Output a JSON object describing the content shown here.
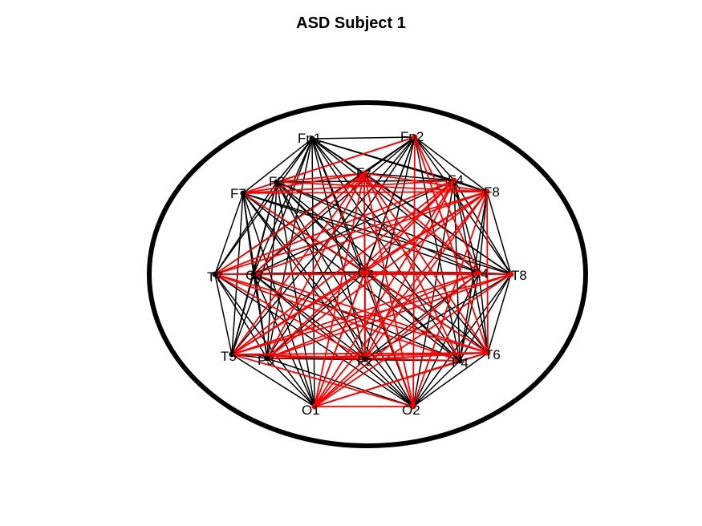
{
  "title": "ASD Subject 1",
  "colors": {
    "background": "#ffffff",
    "outline": "#000000",
    "black_edge": "#000000",
    "red_edge": "#ff0000",
    "node": "#000000"
  },
  "nodes": [
    {
      "id": "Fp1",
      "label": "Fp1"
    },
    {
      "id": "Fp2",
      "label": "Fp2"
    },
    {
      "id": "F7",
      "label": "F7"
    },
    {
      "id": "F3",
      "label": "F3"
    },
    {
      "id": "Fz",
      "label": "Fz"
    },
    {
      "id": "F4",
      "label": "F4"
    },
    {
      "id": "F8",
      "label": "F8"
    },
    {
      "id": "T7",
      "label": "T7"
    },
    {
      "id": "C3",
      "label": "C3"
    },
    {
      "id": "Cz",
      "label": "Cz"
    },
    {
      "id": "C4",
      "label": "C4"
    },
    {
      "id": "T8",
      "label": "T8"
    },
    {
      "id": "T5",
      "label": "T5"
    },
    {
      "id": "P3",
      "label": "P3"
    },
    {
      "id": "Pz",
      "label": "Pz"
    },
    {
      "id": "P4",
      "label": "P4"
    },
    {
      "id": "T6",
      "label": "T6"
    },
    {
      "id": "O1",
      "label": "O1"
    },
    {
      "id": "O2",
      "label": "O2"
    }
  ],
  "red_hubs": [
    "Fz",
    "F4",
    "F8",
    "Cz",
    "C4",
    "T8",
    "T6",
    "O1",
    "O2",
    "Fp2"
  ],
  "red_edges": [
    [
      "Fz",
      "F7"
    ],
    [
      "Fz",
      "F3"
    ],
    [
      "Fz",
      "T7"
    ],
    [
      "Fz",
      "C3"
    ],
    [
      "Fz",
      "T5"
    ],
    [
      "Fz",
      "P3"
    ],
    [
      "Fz",
      "Pz"
    ],
    [
      "Fz",
      "P4"
    ],
    [
      "Fz",
      "T6"
    ],
    [
      "Fz",
      "O1"
    ],
    [
      "Fz",
      "O2"
    ],
    [
      "Fz",
      "F8"
    ],
    [
      "Fz",
      "C4"
    ],
    [
      "F8",
      "F7"
    ],
    [
      "F8",
      "T7"
    ],
    [
      "F8",
      "C3"
    ],
    [
      "F8",
      "T5"
    ],
    [
      "F8",
      "P3"
    ],
    [
      "F8",
      "Pz"
    ],
    [
      "F8",
      "O1"
    ],
    [
      "F8",
      "Cz"
    ],
    [
      "F8",
      "T6"
    ],
    [
      "F8",
      "O2"
    ],
    [
      "F8",
      "F3"
    ],
    [
      "F4",
      "T7"
    ],
    [
      "F4",
      "T5"
    ],
    [
      "F4",
      "P3"
    ],
    [
      "F4",
      "O1"
    ],
    [
      "F4",
      "Pz"
    ],
    [
      "F4",
      "F7"
    ],
    [
      "F4",
      "Cz"
    ],
    [
      "Fp2",
      "F7"
    ],
    [
      "Fp2",
      "F3"
    ],
    [
      "Fp2",
      "O2"
    ],
    [
      "Fp2",
      "T6"
    ],
    [
      "Fp2",
      "C4"
    ],
    [
      "Cz",
      "T5"
    ],
    [
      "Cz",
      "O1"
    ],
    [
      "Cz",
      "O2"
    ],
    [
      "Cz",
      "T8"
    ],
    [
      "Cz",
      "T6"
    ],
    [
      "Cz",
      "F7"
    ],
    [
      "Cz",
      "Pz"
    ],
    [
      "C4",
      "T5"
    ],
    [
      "C4",
      "O1"
    ],
    [
      "C4",
      "T7"
    ],
    [
      "C4",
      "P3"
    ],
    [
      "T8",
      "T7"
    ],
    [
      "T8",
      "T5"
    ],
    [
      "T8",
      "O1"
    ],
    [
      "T8",
      "P3"
    ],
    [
      "T8",
      "C3"
    ],
    [
      "T6",
      "T7"
    ],
    [
      "T6",
      "T5"
    ],
    [
      "T6",
      "O1"
    ],
    [
      "T6",
      "P3"
    ],
    [
      "T6",
      "C3"
    ],
    [
      "O1",
      "O2"
    ],
    [
      "O1",
      "P4"
    ],
    [
      "O1",
      "Pz"
    ],
    [
      "O2",
      "T5"
    ],
    [
      "Pz",
      "T5"
    ],
    [
      "Pz",
      "T6"
    ],
    [
      "Pz",
      "T7"
    ],
    [
      "P4",
      "T5"
    ],
    [
      "P4",
      "T7"
    ]
  ]
}
